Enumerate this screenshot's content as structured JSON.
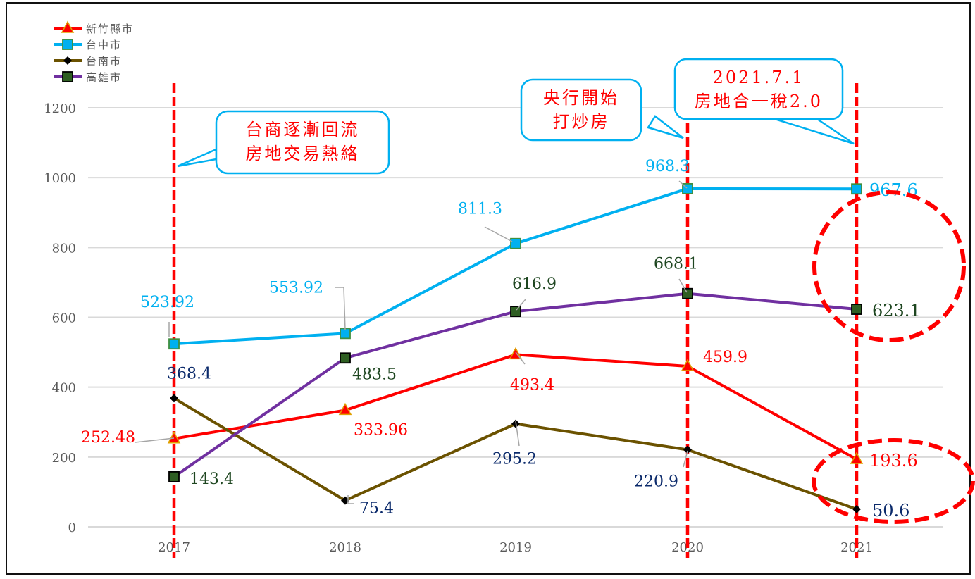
{
  "chart_data": {
    "type": "line",
    "title": "",
    "xlabel": "",
    "ylabel": "",
    "categories": [
      "2017",
      "2018",
      "2019",
      "2020",
      "2021"
    ],
    "ylim": [
      0,
      1200
    ],
    "yticks": [
      "0",
      "200",
      "400",
      "600",
      "800",
      "1000",
      "1200"
    ],
    "grid": true,
    "legend_position": "top-left",
    "series": [
      {
        "name": "新竹縣市",
        "color": "#FF0000",
        "marker": "triangle",
        "marker_color": "#FF0000",
        "label_color": "#FF0000",
        "values": [
          252.48,
          333.96,
          493.4,
          459.9,
          193.6
        ],
        "labels": [
          "252.48",
          "333.96",
          "493.4",
          "459.9",
          "193.6"
        ]
      },
      {
        "name": "台中市",
        "color": "#00B0F0",
        "marker": "square",
        "marker_color": "#00B0F0",
        "label_color": "#00B0F0",
        "values": [
          523.92,
          553.92,
          811.3,
          968.3,
          967.6
        ],
        "labels": [
          "523.92",
          "553.92",
          "811.3",
          "968.3",
          "967.6"
        ]
      },
      {
        "name": "台南市",
        "color": "#6B5200",
        "marker": "diamond",
        "marker_color": "#000000",
        "label_color": "#0B2A6B",
        "values": [
          368.4,
          75.4,
          295.2,
          220.9,
          50.6
        ],
        "labels": [
          "368.4",
          "75.4",
          "295.2",
          "220.9",
          "50.6"
        ]
      },
      {
        "name": "高雄市",
        "color": "#7030A0",
        "marker": "square",
        "marker_color": "#2E5E22",
        "label_color": "#1E4620",
        "values": [
          143.4,
          483.5,
          616.9,
          668.1,
          623.1
        ],
        "labels": [
          "143.4",
          "483.5",
          "616.9",
          "668.1",
          "623.1"
        ]
      }
    ],
    "annotations": [
      {
        "text_lines": [
          "台商逐漸回流",
          "房地交易熱絡"
        ],
        "points_to": "2017"
      },
      {
        "text_lines": [
          "央行開始",
          "打炒房"
        ],
        "points_to": "2020"
      },
      {
        "text_lines": [
          "2021.7.1",
          "房地合一稅2.0"
        ],
        "points_to": "2021"
      }
    ],
    "reference_lines": [
      "2017",
      "2020",
      "2021"
    ],
    "highlight_circles": [
      "2021 台中市/高雄市",
      "2021 新竹縣市/台南市"
    ]
  }
}
